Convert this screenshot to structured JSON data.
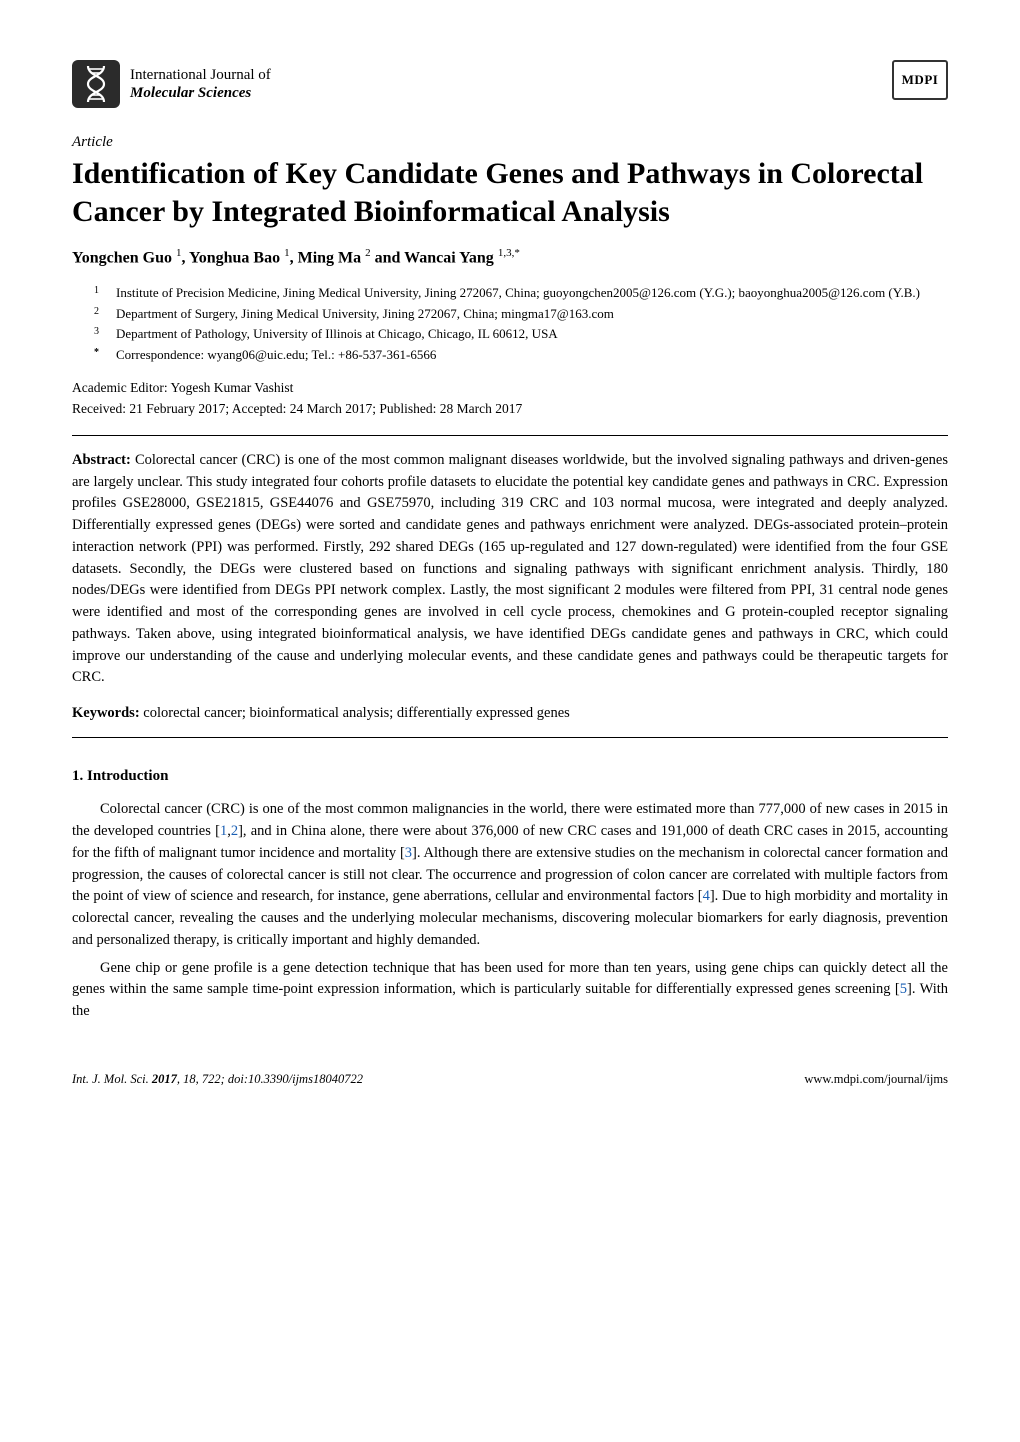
{
  "colors": {
    "background": "#ffffff",
    "text": "#000000",
    "link": "#1a5fb4",
    "logo_bg": "#2b2b2b",
    "dna_stroke": "#ffffff",
    "mdpi_border": "#333333"
  },
  "header": {
    "journal_line1": "International Journal of",
    "journal_line2": "Molecular Sciences",
    "publisher_logo_text": "MDPI"
  },
  "article": {
    "type": "Article",
    "title": "Identification of Key Candidate Genes and Pathways in Colorectal Cancer by Integrated Bioinformatical Analysis",
    "authors_html": "Yongchen Guo ¹, Yonghua Bao ¹, Ming Ma ² and Wancai Yang ¹,³,*",
    "authors": [
      {
        "name": "Yongchen Guo",
        "sup": "1"
      },
      {
        "name": "Yonghua Bao",
        "sup": "1"
      },
      {
        "name": "Ming Ma",
        "sup": "2"
      },
      {
        "name": "Wancai Yang",
        "sup": "1,3,*"
      }
    ],
    "affiliations": [
      {
        "num": "1",
        "text": "Institute of Precision Medicine, Jining Medical University, Jining 272067, China; guoyongchen2005@126.com (Y.G.); baoyonghua2005@126.com (Y.B.)"
      },
      {
        "num": "2",
        "text": "Department of Surgery, Jining Medical University, Jining 272067, China; mingma17@163.com"
      },
      {
        "num": "3",
        "text": "Department of Pathology, University of Illinois at Chicago, Chicago, IL 60612, USA"
      },
      {
        "num": "*",
        "text": "Correspondence: wyang06@uic.edu; Tel.: +86-537-361-6566"
      }
    ],
    "editor_line": "Academic Editor: Yogesh Kumar Vashist",
    "received_line": "Received: 21 February 2017; Accepted: 24 March 2017; Published: 28 March 2017"
  },
  "abstract": {
    "label": "Abstract:",
    "text": "Colorectal cancer (CRC) is one of the most common malignant diseases worldwide, but the involved signaling pathways and driven-genes are largely unclear. This study integrated four cohorts profile datasets to elucidate the potential key candidate genes and pathways in CRC. Expression profiles GSE28000, GSE21815, GSE44076 and GSE75970, including 319 CRC and 103 normal mucosa, were integrated and deeply analyzed. Differentially expressed genes (DEGs) were sorted and candidate genes and pathways enrichment were analyzed. DEGs-associated protein–protein interaction network (PPI) was performed. Firstly, 292 shared DEGs (165 up-regulated and 127 down-regulated) were identified from the four GSE datasets. Secondly, the DEGs were clustered based on functions and signaling pathways with significant enrichment analysis. Thirdly, 180 nodes/DEGs were identified from DEGs PPI network complex. Lastly, the most significant 2 modules were filtered from PPI, 31 central node genes were identified and most of the corresponding genes are involved in cell cycle process, chemokines and G protein-coupled receptor signaling pathways. Taken above, using integrated bioinformatical analysis, we have identified DEGs candidate genes and pathways in CRC, which could improve our understanding of the cause and underlying molecular events, and these candidate genes and pathways could be therapeutic targets for CRC."
  },
  "keywords": {
    "label": "Keywords:",
    "text": "colorectal cancer; bioinformatical analysis; differentially expressed genes"
  },
  "sections": {
    "intro_heading": "1. Introduction",
    "intro_para1_pre": "Colorectal cancer (CRC) is one of the most common malignancies in the world, there were estimated more than 777,000 of new cases in 2015 in the developed countries [",
    "intro_para1_ref1": "1",
    "intro_para1_mid1": ",",
    "intro_para1_ref2": "2",
    "intro_para1_mid2": "], and in China alone, there were about 376,000 of new CRC cases and 191,000 of death CRC cases in 2015, accounting for the fifth of malignant tumor incidence and mortality [",
    "intro_para1_ref3": "3",
    "intro_para1_mid3": "]. Although there are extensive studies on the mechanism in colorectal cancer formation and progression, the causes of colorectal cancer is still not clear. The occurrence and progression of colon cancer are correlated with multiple factors from the point of view of science and research, for instance, gene aberrations, cellular and environmental factors [",
    "intro_para1_ref4": "4",
    "intro_para1_post": "]. Due to high morbidity and mortality in colorectal cancer, revealing the causes and the underlying molecular mechanisms, discovering molecular biomarkers for early diagnosis, prevention and personalized therapy, is critically important and highly demanded.",
    "intro_para2_pre": "Gene chip or gene profile is a gene detection technique that has been used for more than ten years, using gene chips can quickly detect all the genes within the same sample time-point expression information, which is particularly suitable for differentially expressed genes screening [",
    "intro_para2_ref5": "5",
    "intro_para2_post": "]. With the"
  },
  "footer": {
    "left": "Int. J. Mol. Sci. 2017, 18, 722; doi:10.3390/ijms18040722",
    "right": "www.mdpi.com/journal/ijms"
  }
}
